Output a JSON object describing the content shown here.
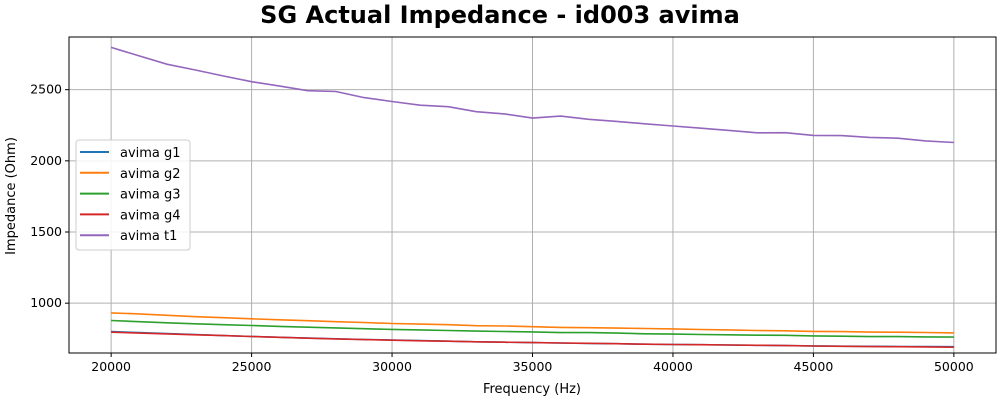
{
  "chart_data": {
    "type": "line",
    "title": "SG Actual Impedance - id003 avima",
    "xlabel": "Frequency (Hz)",
    "ylabel": "Impedance (Ohm)",
    "xlim": [
      18500,
      51500
    ],
    "ylim": [
      650,
      2870
    ],
    "xticks": [
      20000,
      25000,
      30000,
      35000,
      40000,
      45000,
      50000
    ],
    "yticks": [
      1000,
      1500,
      2000,
      2500
    ],
    "grid": true,
    "legend_position": "center-left",
    "x": [
      20000,
      21000,
      22000,
      23000,
      24000,
      25000,
      26000,
      27000,
      28000,
      29000,
      30000,
      31000,
      32000,
      33000,
      34000,
      35000,
      36000,
      37000,
      38000,
      39000,
      40000,
      41000,
      42000,
      43000,
      44000,
      45000,
      46000,
      47000,
      48000,
      49000,
      50000
    ],
    "series": [
      {
        "name": "avima g1",
        "color": "#1f77b4",
        "values": [
          800,
          793,
          786,
          779,
          772,
          766,
          760,
          755,
          750,
          745,
          741,
          737,
          733,
          729,
          726,
          723,
          720,
          717,
          715,
          712,
          710,
          708,
          706,
          704,
          702,
          700,
          698,
          697,
          696,
          695,
          694
        ]
      },
      {
        "name": "avima g2",
        "color": "#ff7f0e",
        "values": [
          932,
          925,
          915,
          905,
          898,
          890,
          883,
          877,
          870,
          864,
          857,
          853,
          849,
          842,
          840,
          835,
          830,
          828,
          825,
          822,
          819,
          815,
          812,
          808,
          806,
          802,
          800,
          797,
          796,
          794,
          791
        ]
      },
      {
        "name": "avima g3",
        "color": "#2ca02c",
        "values": [
          878,
          870,
          862,
          855,
          849,
          843,
          837,
          831,
          826,
          821,
          816,
          812,
          808,
          804,
          801,
          798,
          793,
          793,
          790,
          785,
          783,
          780,
          778,
          775,
          774,
          770,
          768,
          765,
          765,
          763,
          762
        ]
      },
      {
        "name": "avima g4",
        "color": "#d62728",
        "values": [
          796,
          790,
          784,
          778,
          772,
          766,
          760,
          754,
          749,
          744,
          740,
          736,
          733,
          729,
          726,
          723,
          720,
          718,
          715,
          712,
          710,
          708,
          706,
          704,
          702,
          699,
          697,
          695,
          694,
          693,
          691
        ]
      },
      {
        "name": "avima t1",
        "color": "#9467bd",
        "values": [
          2797,
          2737,
          2678,
          2638,
          2596,
          2556,
          2525,
          2493,
          2487,
          2444,
          2417,
          2391,
          2380,
          2345,
          2330,
          2300,
          2314,
          2292,
          2277,
          2260,
          2245,
          2229,
          2214,
          2197,
          2198,
          2179,
          2177,
          2165,
          2159,
          2140,
          2129
        ]
      }
    ]
  }
}
